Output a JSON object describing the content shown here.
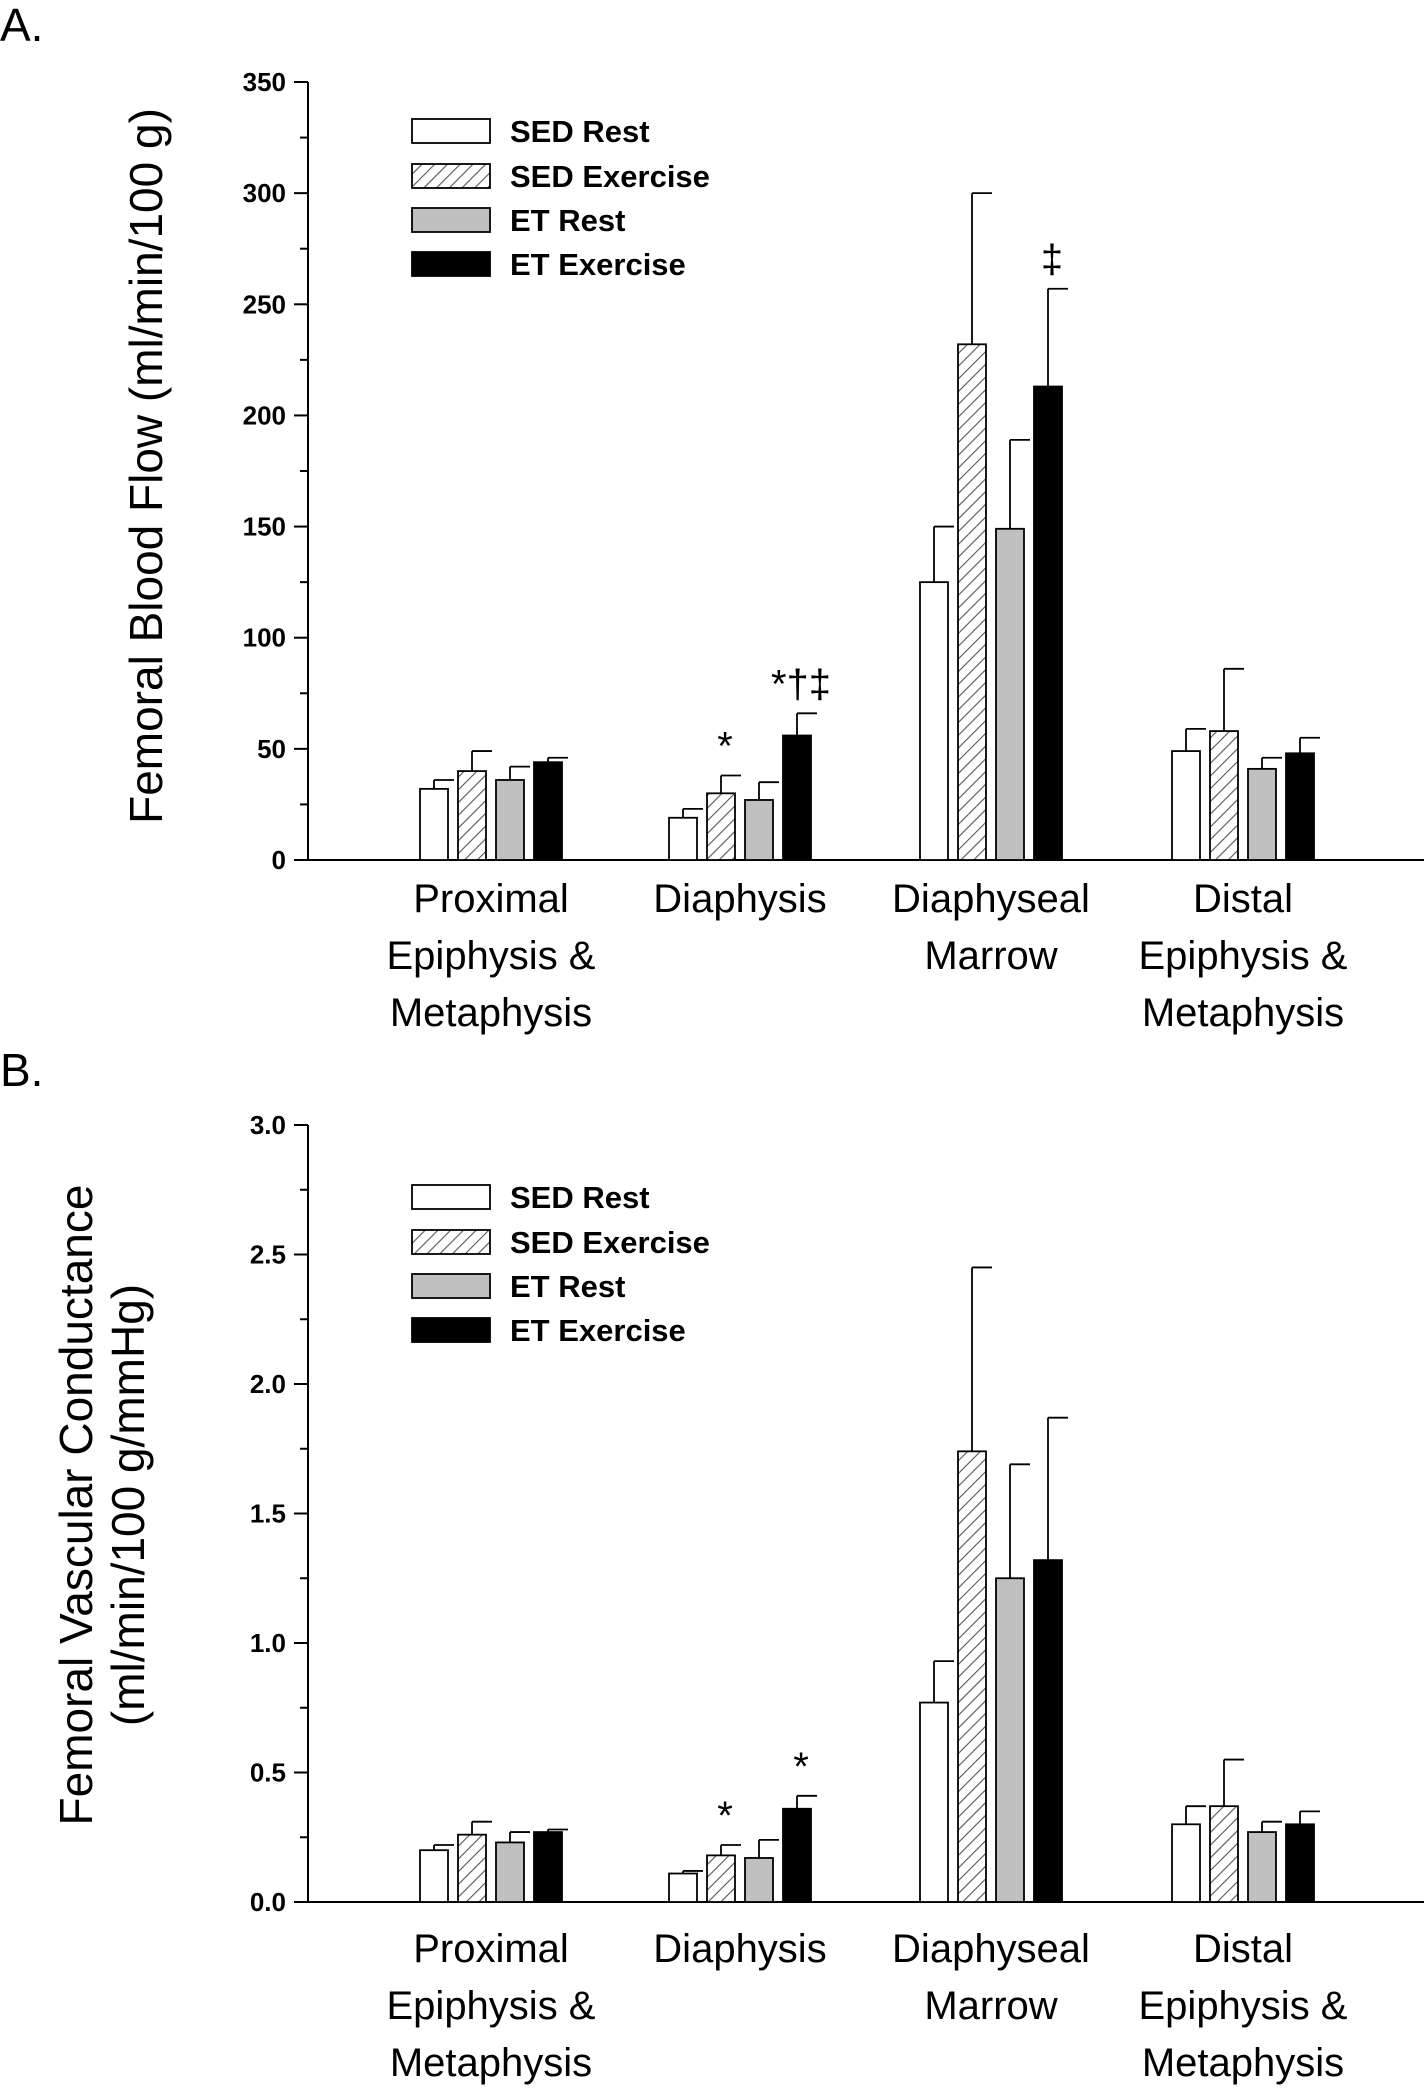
{
  "colors": {
    "SED Rest": "#ffffff",
    "SED Exercise": "hatch",
    "ET Rest": "#c0c0c0",
    "ET Exercise": "#000000"
  },
  "chart_data": [
    {
      "type": "bar",
      "panel_label": "A.",
      "ylabel": "Femoral Blood Flow (ml/min/100 g)",
      "ylim": [
        0,
        350
      ],
      "yticks": [
        "0",
        "50",
        "100",
        "150",
        "200",
        "250",
        "300",
        "350"
      ],
      "ytick_values": [
        0,
        50,
        100,
        150,
        200,
        250,
        300,
        350
      ],
      "categories": [
        [
          "Proximal",
          "Epiphysis &",
          "Metaphysis"
        ],
        [
          "Diaphysis"
        ],
        [
          "Diaphyseal",
          "Marrow"
        ],
        [
          "Distal",
          "Epiphysis &",
          "Metaphysis"
        ]
      ],
      "legend": {
        "position": "top-left",
        "entries": [
          "SED Rest",
          "SED Exercise",
          "ET Rest",
          "ET Exercise"
        ]
      },
      "series": [
        {
          "name": "SED Rest",
          "values": [
            32,
            19,
            125,
            49
          ],
          "errors": [
            4,
            4,
            25,
            10
          ]
        },
        {
          "name": "SED Exercise",
          "values": [
            40,
            30,
            232,
            58
          ],
          "errors": [
            9,
            8,
            68,
            28
          ]
        },
        {
          "name": "ET Rest",
          "values": [
            36,
            27,
            149,
            41
          ],
          "errors": [
            6,
            8,
            40,
            5
          ]
        },
        {
          "name": "ET Exercise",
          "values": [
            44,
            56,
            213,
            48
          ],
          "errors": [
            2,
            10,
            44,
            7
          ]
        }
      ],
      "annotations": [
        {
          "category": 1,
          "series": 1,
          "text": "*"
        },
        {
          "category": 1,
          "series": 3,
          "text": "*†‡"
        },
        {
          "category": 2,
          "series": 3,
          "text": "‡"
        }
      ]
    },
    {
      "type": "bar",
      "panel_label": "B.",
      "ylabel": [
        "Femoral Vascular Conductance",
        "(ml/min/100 g/mmHg)"
      ],
      "ylim": [
        0,
        3.0
      ],
      "yticks": [
        "0.0",
        "0.5",
        "1.0",
        "1.5",
        "2.0",
        "2.5",
        "3.0"
      ],
      "ytick_values": [
        0,
        0.5,
        1.0,
        1.5,
        2.0,
        2.5,
        3.0
      ],
      "categories": [
        [
          "Proximal",
          "Epiphysis &",
          "Metaphysis"
        ],
        [
          "Diaphysis"
        ],
        [
          "Diaphyseal",
          "Marrow"
        ],
        [
          "Distal",
          "Epiphysis &",
          "Metaphysis"
        ]
      ],
      "legend": {
        "position": "top-left",
        "entries": [
          "SED Rest",
          "SED Exercise",
          "ET Rest",
          "ET Exercise"
        ]
      },
      "series": [
        {
          "name": "SED Rest",
          "values": [
            0.2,
            0.11,
            0.77,
            0.3
          ],
          "errors": [
            0.02,
            0.01,
            0.16,
            0.07
          ]
        },
        {
          "name": "SED Exercise",
          "values": [
            0.26,
            0.18,
            1.74,
            0.37
          ],
          "errors": [
            0.05,
            0.04,
            0.71,
            0.18
          ]
        },
        {
          "name": "ET Rest",
          "values": [
            0.23,
            0.17,
            1.25,
            0.27
          ],
          "errors": [
            0.04,
            0.07,
            0.44,
            0.04
          ]
        },
        {
          "name": "ET Exercise",
          "values": [
            0.27,
            0.36,
            1.32,
            0.3
          ],
          "errors": [
            0.01,
            0.05,
            0.55,
            0.05
          ]
        }
      ],
      "annotations": [
        {
          "category": 1,
          "series": 1,
          "text": "*"
        },
        {
          "category": 1,
          "series": 3,
          "text": "*"
        }
      ]
    }
  ]
}
